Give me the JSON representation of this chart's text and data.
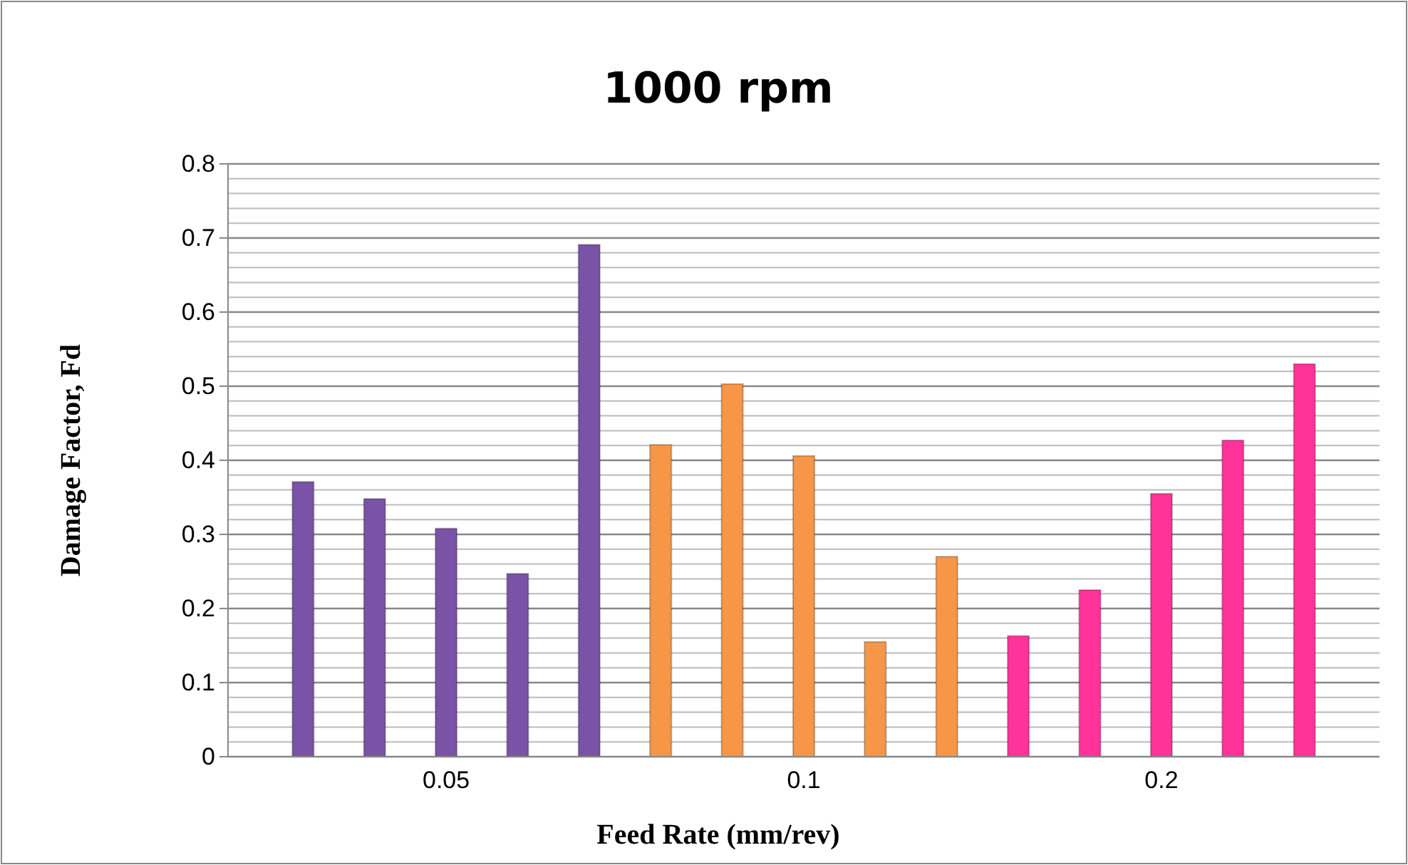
{
  "chart_data": {
    "type": "bar",
    "title": "1000 rpm",
    "xlabel": "Feed Rate (mm/rev)",
    "ylabel": "Damage Factor, Fd",
    "categories": [
      null,
      null,
      "0.05",
      null,
      null,
      null,
      null,
      "0.1",
      null,
      null,
      null,
      null,
      "0.2",
      null,
      null
    ],
    "values": [
      0.371,
      0.348,
      0.308,
      0.247,
      0.691,
      0.421,
      0.503,
      0.406,
      0.155,
      0.27,
      0.163,
      0.225,
      0.355,
      0.427,
      0.53
    ],
    "colors": [
      "#7a52a6",
      "#7a52a6",
      "#7a52a6",
      "#7a52a6",
      "#7a52a6",
      "#f79646",
      "#f79646",
      "#f79646",
      "#f79646",
      "#f79646",
      "#ff3399",
      "#ff3399",
      "#ff3399",
      "#ff3399",
      "#ff3399"
    ],
    "ylim": [
      0,
      0.8
    ],
    "yticks": [
      0,
      {
        "value": 0.02,
        "label": null
      },
      {
        "value": 0.04,
        "label": null
      },
      {
        "value": 0.06,
        "label": null
      },
      {
        "value": 0.08,
        "label": null
      },
      0.1,
      {
        "value": 0.12,
        "label": null
      },
      {
        "value": 0.14,
        "label": null
      },
      {
        "value": 0.16,
        "label": null
      },
      {
        "value": 0.18,
        "label": null
      },
      0.2,
      {
        "value": 0.22,
        "label": null
      },
      {
        "value": 0.24,
        "label": null
      },
      {
        "value": 0.26,
        "label": null
      },
      {
        "value": 0.28,
        "label": null
      },
      0.3,
      {
        "value": 0.32,
        "label": null
      },
      {
        "value": 0.34,
        "label": null
      },
      {
        "value": 0.36,
        "label": null
      },
      {
        "value": 0.38,
        "label": null
      },
      0.4,
      {
        "value": 0.42,
        "label": null
      },
      {
        "value": 0.44,
        "label": null
      },
      {
        "value": 0.46,
        "label": null
      },
      {
        "value": 0.48,
        "label": null
      },
      0.5,
      {
        "value": 0.52,
        "label": null
      },
      {
        "value": 0.54,
        "label": null
      },
      {
        "value": 0.56,
        "label": null
      },
      {
        "value": 0.58,
        "label": null
      },
      0.6,
      {
        "value": 0.62,
        "label": null
      },
      {
        "value": 0.64,
        "label": null
      },
      {
        "value": 0.66,
        "label": null
      },
      {
        "value": 0.68,
        "label": null
      },
      0.7,
      {
        "value": 0.72,
        "label": null
      },
      {
        "value": 0.74,
        "label": null
      },
      {
        "value": 0.76,
        "label": null
      },
      {
        "value": 0.78,
        "label": null
      },
      0.8
    ],
    "grid": "y"
  }
}
